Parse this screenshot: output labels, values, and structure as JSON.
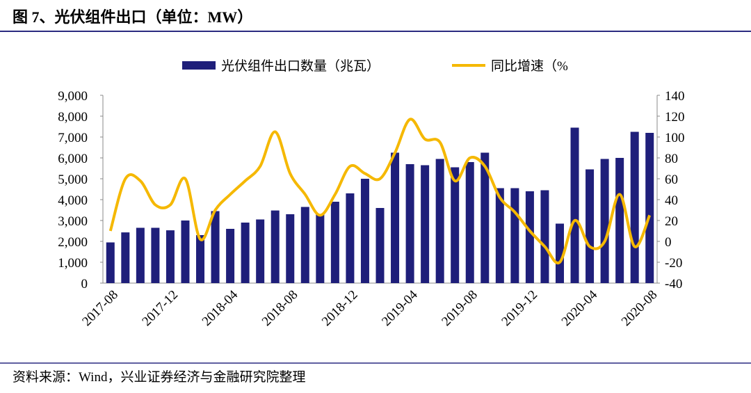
{
  "chart_data": {
    "type": "bar_line",
    "title": "图 7、光伏组件出口（单位：MW）",
    "source": "资料来源：Wind，兴业证券经济与金融研究院整理",
    "categories": [
      "2017-08",
      null,
      null,
      null,
      "2017-12",
      null,
      null,
      null,
      "2018-04",
      null,
      null,
      null,
      "2018-08",
      null,
      null,
      null,
      "2018-12",
      null,
      null,
      null,
      "2019-04",
      null,
      null,
      null,
      "2019-08",
      null,
      null,
      null,
      "2019-12",
      null,
      null,
      null,
      "2020-04",
      null,
      null,
      null,
      "2020-08"
    ],
    "series": [
      {
        "name": "光伏组件出口数量（兆瓦）",
        "color": "#1f1f7a",
        "kind": "bar",
        "axis": "y",
        "values": [
          1950,
          2430,
          2650,
          2650,
          2530,
          3000,
          2300,
          3450,
          2600,
          2900,
          3050,
          3480,
          3300,
          3650,
          3300,
          3900,
          4300,
          5000,
          3600,
          6250,
          5700,
          5650,
          5950,
          5550,
          5800,
          6250,
          4550,
          4550,
          4400,
          4450,
          2850,
          7450,
          5450,
          5950,
          6000,
          7250,
          7200
        ]
      },
      {
        "name": "同比增速（%",
        "color": "#f5b800",
        "kind": "line",
        "axis": "y2",
        "values": [
          10,
          60,
          58,
          35,
          35,
          60,
          2,
          30,
          45,
          58,
          72,
          105,
          65,
          45,
          25,
          45,
          72,
          65,
          60,
          85,
          117,
          98,
          95,
          58,
          80,
          72,
          42,
          28,
          10,
          -5,
          -20,
          20,
          -5,
          0,
          45,
          -5,
          25
        ]
      }
    ],
    "ylim": [
      0,
      9000
    ],
    "yticks": [
      0,
      {
        "value": 1000,
        "label": "1,000"
      },
      {
        "value": 2000,
        "label": "2,000"
      },
      {
        "value": 3000,
        "label": "3,000"
      },
      {
        "value": 4000,
        "label": "4,000"
      },
      {
        "value": 5000,
        "label": "5,000"
      },
      {
        "value": 6000,
        "label": "6,000"
      },
      {
        "value": 7000,
        "label": "7,000"
      },
      {
        "value": 8000,
        "label": "8,000"
      },
      {
        "value": 9000,
        "label": "9,000"
      }
    ],
    "y2lim": [
      -40,
      140
    ],
    "y2ticks": [
      -40,
      -20,
      0,
      20,
      40,
      60,
      80,
      100,
      120,
      140
    ],
    "legend": "top"
  }
}
